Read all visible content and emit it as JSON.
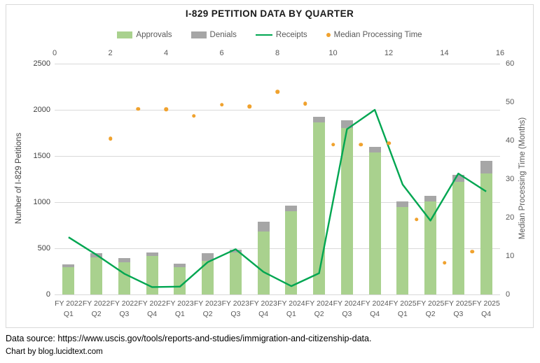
{
  "title": "I-829 PETITION DATA BY QUARTER",
  "legend": {
    "items": [
      {
        "label": "Approvals",
        "marker": "square",
        "color": "#A9D18E"
      },
      {
        "label": "Denials",
        "marker": "square",
        "color": "#A6A6A6"
      },
      {
        "label": "Receipts",
        "marker": "line",
        "color": "#00A651"
      },
      {
        "label": "Median Processing Time",
        "marker": "dot",
        "color": "#F0A22E"
      }
    ]
  },
  "chart_data": {
    "type": "combo-stacked-bar-line-scatter",
    "categories": [
      {
        "fy": "FY 2022",
        "q": "Q1"
      },
      {
        "fy": "FY 2022",
        "q": "Q2"
      },
      {
        "fy": "FY 2022",
        "q": "Q3"
      },
      {
        "fy": "FY 2022",
        "q": "Q4"
      },
      {
        "fy": "FY 2023",
        "q": "Q1"
      },
      {
        "fy": "FY 2023",
        "q": "Q2"
      },
      {
        "fy": "FY 2023",
        "q": "Q3"
      },
      {
        "fy": "FY 2023",
        "q": "Q4"
      },
      {
        "fy": "FY 2024",
        "q": "Q1"
      },
      {
        "fy": "FY 2024",
        "q": "Q2"
      },
      {
        "fy": "FY 2024",
        "q": "Q3"
      },
      {
        "fy": "FY 2024",
        "q": "Q4"
      },
      {
        "fy": "FY 2025",
        "q": "Q1"
      },
      {
        "fy": "FY 2025",
        "q": "Q2"
      },
      {
        "fy": "FY 2025",
        "q": "Q3"
      },
      {
        "fy": "FY 2025",
        "q": "Q4"
      }
    ],
    "series": [
      {
        "name": "Approvals",
        "type": "bar-stack",
        "color": "#A9D18E",
        "axis": "left",
        "values": [
          295,
          405,
          350,
          420,
          297,
          365,
          457,
          680,
          900,
          1860,
          1800,
          1535,
          950,
          1010,
          1220,
          1310
        ]
      },
      {
        "name": "Denials",
        "type": "bar-stack",
        "color": "#A6A6A6",
        "axis": "left",
        "values": [
          33,
          44,
          42,
          36,
          33,
          85,
          25,
          110,
          65,
          65,
          85,
          60,
          55,
          60,
          75,
          140
        ]
      },
      {
        "name": "Receipts",
        "type": "line",
        "color": "#00A651",
        "axis": "left",
        "values": [
          620,
          430,
          225,
          80,
          85,
          350,
          490,
          245,
          90,
          230,
          1790,
          2000,
          1190,
          800,
          1310,
          1115
        ]
      },
      {
        "name": "Median Processing Time",
        "type": "scatter",
        "color": "#F0A22E",
        "axis": "right",
        "x_top_axis": [
          2,
          3,
          4,
          5,
          6,
          7,
          8,
          9,
          10,
          11,
          12,
          13,
          14,
          15
        ],
        "months": [
          40.5,
          48.2,
          48.1,
          46.4,
          49.3,
          48.9,
          52.7,
          49.6,
          39.0,
          39.0,
          39.3,
          19.5,
          8.2,
          11.1
        ]
      }
    ],
    "axes": {
      "left": {
        "title": "Number of I-829 Petitions",
        "min": 0,
        "max": 2500,
        "step": 500,
        "ticks": [
          "2500",
          "2000",
          "1500",
          "1000",
          "500",
          "0"
        ]
      },
      "right": {
        "title": "Median Processing Time (Months)",
        "min": 0,
        "max": 60,
        "step": 10,
        "ticks": [
          "60",
          "50",
          "40",
          "30",
          "20",
          "10",
          "0"
        ]
      },
      "top": {
        "min": 0,
        "max": 16,
        "step": 2,
        "ticks": [
          "0",
          "2",
          "4",
          "6",
          "8",
          "10",
          "12",
          "14",
          "16"
        ]
      },
      "grid": true,
      "legend_position": "top"
    }
  },
  "footer": {
    "source": "Data source: https://www.uscis.gov/tools/reports-and-studies/immigration-and-citizenship-data.",
    "credit": "Chart by blog.lucidtext.com"
  }
}
